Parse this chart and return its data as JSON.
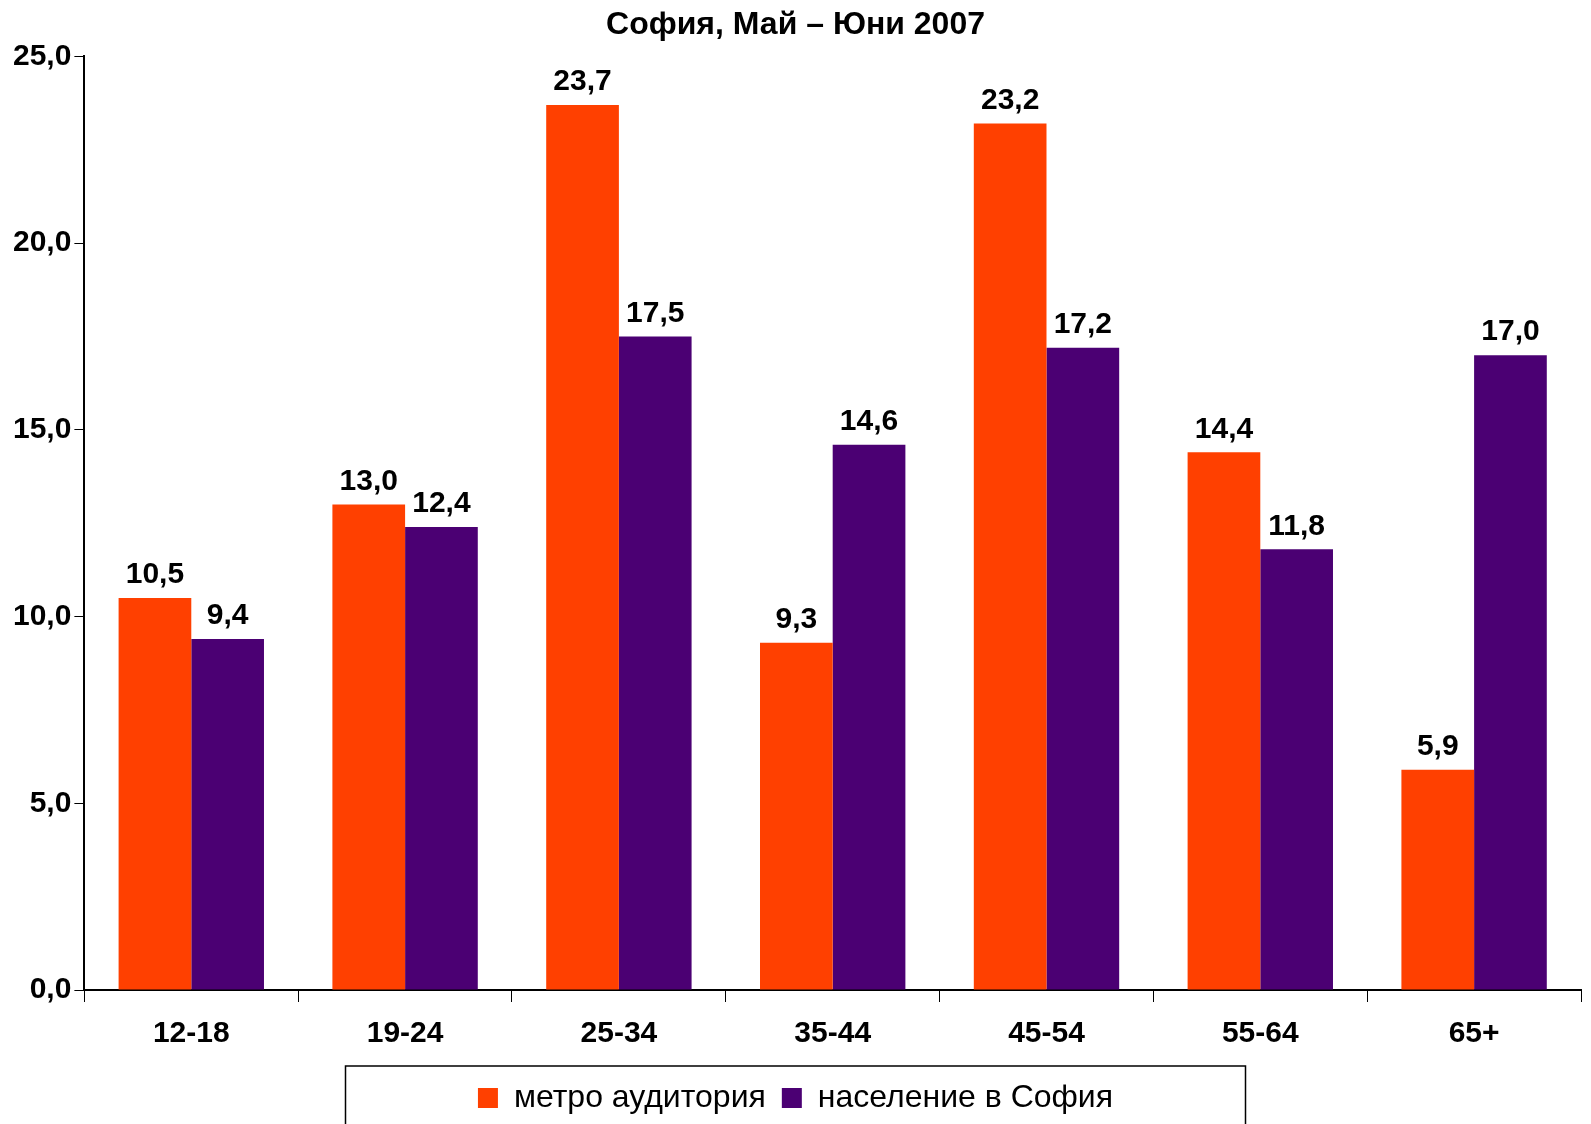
{
  "chart_data": {
    "type": "bar",
    "title": "София, Май – Юни 2007",
    "categories": [
      "12-18",
      "19-24",
      "25-34",
      "35-44",
      "45-54",
      "55-64",
      "65+"
    ],
    "series": [
      {
        "name": "метро аудитория",
        "color": "#ff4000",
        "values": [
          10.5,
          13.0,
          23.7,
          9.3,
          23.2,
          14.4,
          5.9
        ],
        "value_labels": [
          "10,5",
          "13,0",
          "23,7",
          "9,3",
          "23,2",
          "14,4",
          "5,9"
        ]
      },
      {
        "name": "население в София",
        "color": "#4b0073",
        "values": [
          9.4,
          12.4,
          17.5,
          14.6,
          17.2,
          11.8,
          17.0
        ],
        "value_labels": [
          "9,4",
          "12,4",
          "17,5",
          "14,6",
          "17,2",
          "11,8",
          "17,0"
        ]
      }
    ],
    "ylim": [
      0,
      25
    ],
    "yticks": [
      {
        "value": 0,
        "label": "0,0"
      },
      {
        "value": 5,
        "label": "5,0"
      },
      {
        "value": 10,
        "label": "10,0"
      },
      {
        "value": 15,
        "label": "15,0"
      },
      {
        "value": 20,
        "label": "20,0"
      },
      {
        "value": 25,
        "label": "25,0"
      }
    ],
    "grid": false,
    "legend": "bottom"
  }
}
